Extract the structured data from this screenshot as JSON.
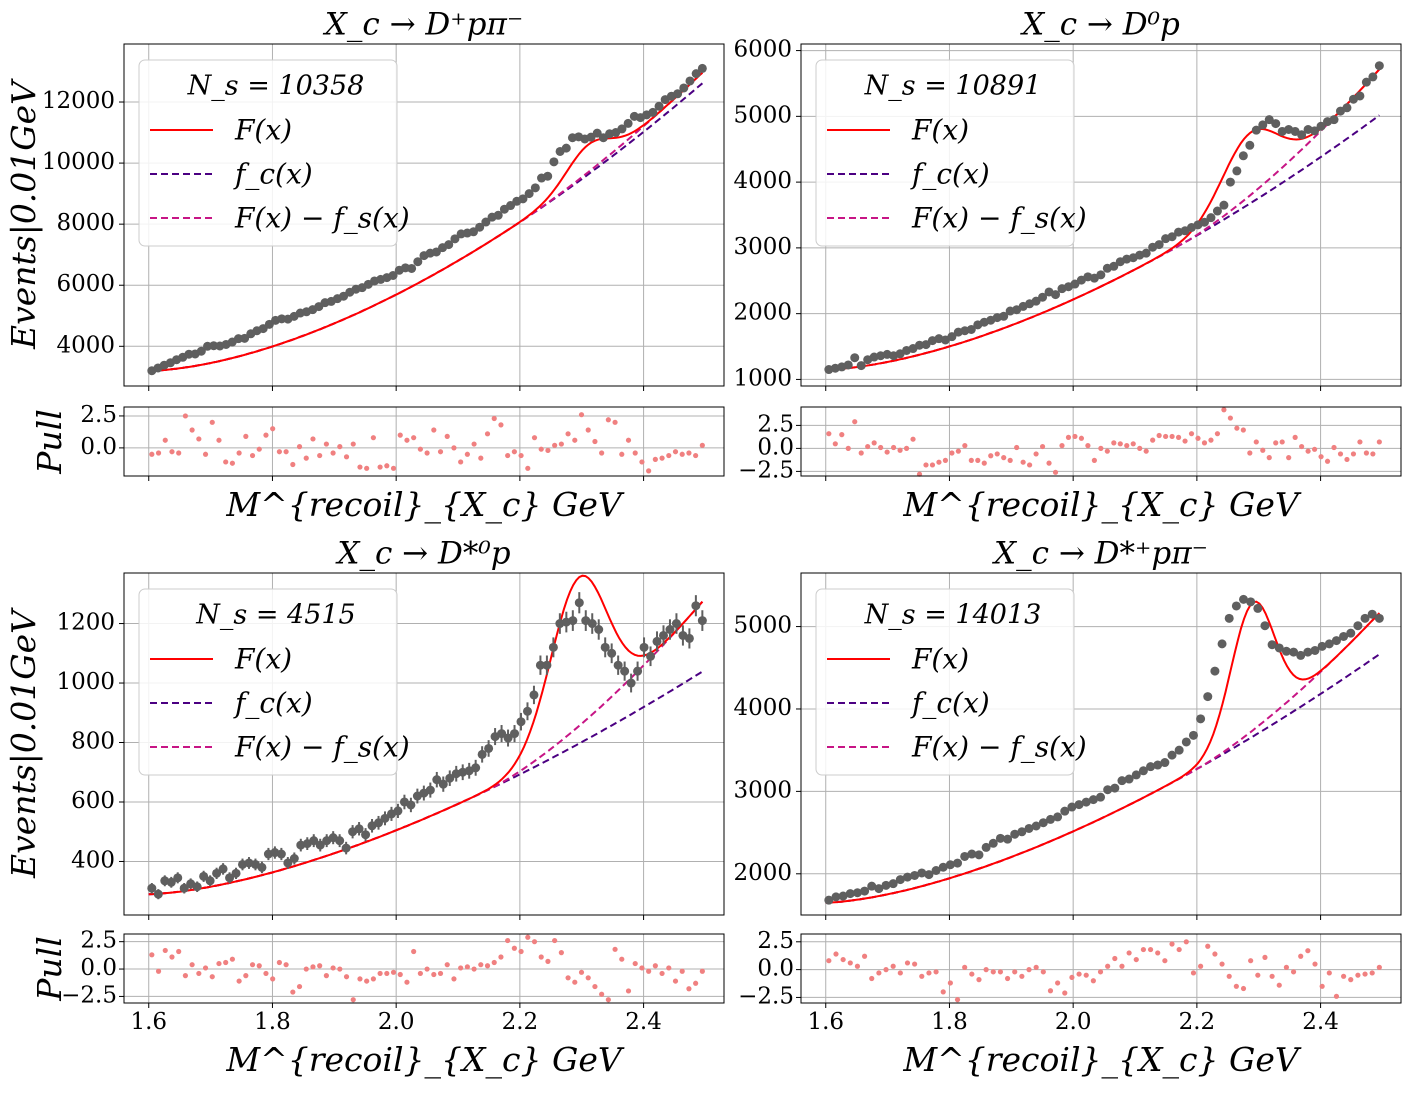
{
  "figure": {
    "background": "#ffffff"
  },
  "legend_entries": [
    "F(x)",
    "f_c(x)",
    "F(x) − f_s(x)"
  ],
  "colors": {
    "total_fit": "#ff0000",
    "combinatorial": "#4b0082",
    "fit_minus_signal": "#c71585",
    "data_points": "#5f5f5f",
    "pull_points": "#f08080",
    "grid": "#b0b0b0"
  },
  "chart_data": [
    {
      "type": "scatter",
      "title": "X_c → D⁺pπ⁻",
      "ylabel": "Events|0.01GeV",
      "xlabel": "M^{recoil}_{X_c} GeV",
      "pull_label": "Pull",
      "legend_title": "N_s = 10358",
      "legend_position": "upper-left",
      "show_error_bars": false,
      "xlim": [
        1.56,
        2.53
      ],
      "ylim": [
        2700,
        13900
      ],
      "yticks": [
        4000,
        6000,
        8000,
        10000,
        12000
      ],
      "xticks": [
        1.6,
        1.8,
        2.0,
        2.2,
        2.4
      ],
      "x_tick_labels_shown": false,
      "grid": true,
      "model": {
        "x_range": [
          1.6,
          2.495
        ],
        "background": {
          "a": 3200,
          "b": 12700,
          "p": 1.65
        },
        "fit_minus_signal": {
          "a": 3200,
          "b": 12700,
          "p": 1.65,
          "c": 350,
          "x0": 2.2,
          "d": 3.5
        },
        "signal_peaks": [
          {
            "amp": 900,
            "mu": 2.31,
            "sigma": 0.035
          }
        ]
      },
      "data_y": [
        3200,
        3290,
        3380,
        3460,
        3560,
        3640,
        3740,
        3750,
        3840,
        4000,
        4020,
        4010,
        4060,
        4140,
        4250,
        4260,
        4410,
        4510,
        4580,
        4720,
        4850,
        4900,
        4890,
        4980,
        5090,
        5130,
        5200,
        5300,
        5430,
        5470,
        5560,
        5640,
        5770,
        5870,
        5920,
        6030,
        6140,
        6190,
        6250,
        6320,
        6490,
        6570,
        6550,
        6770,
        6970,
        7050,
        7090,
        7230,
        7330,
        7520,
        7680,
        7710,
        7750,
        7900,
        8070,
        8230,
        8290,
        8490,
        8610,
        8750,
        8830,
        9000,
        9190,
        9510,
        9570,
        10040,
        10380,
        10490,
        10830,
        10860,
        10790,
        10850,
        10980,
        10830,
        10960,
        11000,
        11120,
        11300,
        11530,
        11490,
        11580,
        11660,
        11860,
        12080,
        12190,
        12270,
        12460,
        12690,
        12930,
        13100
      ],
      "pull_ylim": [
        -2.2,
        3.2
      ],
      "pull_yticks": [
        0.0,
        2.5
      ],
      "pull_values": [
        -0.5,
        -0.4,
        0.6,
        -0.3,
        -0.4,
        2.5,
        1.4,
        0.7,
        -0.5,
        2.0,
        0.6,
        -1.1,
        -1.2,
        -0.4,
        0.9,
        -0.6,
        -0.1,
        1.0,
        1.5,
        -0.3,
        -0.3,
        -1.3,
        0.1,
        -0.8,
        0.7,
        -0.6,
        0.3,
        -0.4,
        0.1,
        -0.7,
        0.3,
        -1.5,
        -1.6,
        0.8,
        -1.5,
        -1.4,
        -1.6,
        1.0,
        0.6,
        0.8,
        -0.1,
        -0.4,
        1.4,
        -0.3,
        0.9,
        0.0,
        -1.1,
        -0.5,
        0.3,
        -0.8,
        1.1,
        2.3,
        1.8,
        -0.6,
        -0.3,
        -0.6,
        -1.6,
        0.8,
        -0.1,
        -0.2,
        0.2,
        0.3,
        1.1,
        0.6,
        2.6,
        1.4,
        0.5,
        -0.4,
        2.2,
        2.0,
        -0.5,
        0.6,
        -0.4,
        -1.1,
        -1.8,
        -0.9,
        -0.8,
        -0.6,
        -0.3,
        -0.5,
        -0.4,
        -0.6,
        0.2
      ]
    },
    {
      "type": "scatter",
      "title": "X_c → D⁰p",
      "ylabel": "",
      "xlabel": "M^{recoil}_{X_c} GeV",
      "pull_label": "",
      "legend_title": "N_s = 10891",
      "legend_position": "upper-left",
      "show_error_bars": false,
      "xlim": [
        1.56,
        2.53
      ],
      "ylim": [
        900,
        6100
      ],
      "yticks": [
        1000,
        2000,
        3000,
        4000,
        5000,
        6000
      ],
      "xticks": [
        1.6,
        1.8,
        2.0,
        2.2,
        2.4
      ],
      "x_tick_labels_shown": false,
      "grid": true,
      "model": {
        "x_range": [
          1.6,
          2.495
        ],
        "background": {
          "a": 1150,
          "b": 5050,
          "p": 1.6
        },
        "fit_minus_signal": {
          "a": 1150,
          "b": 5050,
          "p": 1.6,
          "c": 700,
          "x0": 2.18,
          "d": 3.3
        },
        "signal_peaks": [
          {
            "amp": 950,
            "mu": 2.285,
            "sigma": 0.045
          }
        ]
      },
      "data_y": [
        1150,
        1170,
        1190,
        1220,
        1330,
        1210,
        1300,
        1340,
        1360,
        1380,
        1360,
        1390,
        1440,
        1470,
        1520,
        1530,
        1590,
        1620,
        1600,
        1650,
        1720,
        1740,
        1760,
        1830,
        1870,
        1900,
        1940,
        1960,
        2040,
        2060,
        2110,
        2150,
        2190,
        2250,
        2330,
        2290,
        2380,
        2410,
        2450,
        2510,
        2560,
        2540,
        2590,
        2690,
        2720,
        2790,
        2830,
        2850,
        2890,
        2920,
        3010,
        3050,
        3140,
        3170,
        3240,
        3260,
        3310,
        3350,
        3390,
        3460,
        3560,
        3650,
        4000,
        4170,
        4400,
        4560,
        4790,
        4870,
        4950,
        4890,
        4770,
        4800,
        4770,
        4720,
        4800,
        4780,
        4850,
        4920,
        4950,
        5080,
        5130,
        5260,
        5310,
        5520,
        5600,
        5770
      ],
      "pull_ylim": [
        -3.0,
        4.5
      ],
      "pull_yticks": [
        -2.5,
        0.0,
        2.5
      ],
      "pull_values": [
        1.6,
        0.5,
        1.5,
        0.0,
        2.9,
        -0.5,
        0.2,
        0.6,
        0.1,
        -0.4,
        0.1,
        -0.2,
        0.0,
        1.0,
        -2.8,
        -1.8,
        -1.8,
        -1.5,
        -1.3,
        -0.5,
        -0.3,
        0.3,
        -1.3,
        -1.3,
        -1.6,
        -0.8,
        -0.6,
        -1.0,
        -1.3,
        0.1,
        -1.5,
        -1.8,
        -0.6,
        0.2,
        -1.6,
        -2.6,
        0.3,
        1.2,
        1.3,
        1.1,
        0.3,
        -1.3,
        0.0,
        -0.3,
        0.6,
        0.5,
        0.3,
        0.5,
        0.0,
        -0.3,
        0.9,
        1.4,
        1.3,
        1.3,
        1.2,
        0.8,
        1.6,
        1.1,
        0.6,
        0.9,
        1.6,
        4.2,
        3.3,
        2.2,
        2.0,
        -0.5,
        0.7,
        -0.2,
        -1.0,
        0.6,
        0.7,
        -1.0,
        1.2,
        0.2,
        -0.3,
        -0.1,
        -0.9,
        -1.4,
        0.1,
        -0.6,
        -1.2,
        -0.6,
        0.7,
        -0.5,
        -0.6,
        0.7
      ]
    },
    {
      "type": "scatter",
      "title": "X_c → D*⁰p",
      "ylabel": "Events|0.01GeV",
      "xlabel": "M^{recoil}_{X_c} GeV",
      "pull_label": "Pull",
      "legend_title": "N_s = 4515",
      "legend_position": "upper-left",
      "show_error_bars": true,
      "xlim": [
        1.56,
        2.53
      ],
      "ylim": [
        220,
        1370
      ],
      "yticks": [
        400,
        600,
        800,
        1000,
        1200
      ],
      "xticks": [
        1.6,
        1.8,
        2.0,
        2.2,
        2.4
      ],
      "x_tick_labels_shown": true,
      "grid": true,
      "model": {
        "x_range": [
          1.6,
          2.495
        ],
        "background": {
          "a": 290,
          "b": 1045,
          "p": 1.55
        },
        "fit_minus_signal": {
          "a": 290,
          "b": 1045,
          "p": 1.55,
          "c": 235,
          "x0": 2.15,
          "d": 3.2
        },
        "signal_peaks": [
          {
            "amp": 500,
            "mu": 2.295,
            "sigma": 0.045
          }
        ]
      },
      "data_y": [
        310,
        290,
        335,
        330,
        345,
        310,
        325,
        315,
        350,
        335,
        360,
        375,
        345,
        360,
        390,
        395,
        390,
        380,
        425,
        430,
        425,
        395,
        410,
        455,
        460,
        470,
        455,
        470,
        480,
        470,
        445,
        500,
        510,
        490,
        520,
        530,
        545,
        560,
        570,
        600,
        590,
        620,
        630,
        640,
        675,
        660,
        680,
        695,
        700,
        705,
        715,
        760,
        780,
        820,
        830,
        815,
        830,
        870,
        905,
        960,
        1060,
        1060,
        1120,
        1200,
        1205,
        1210,
        1270,
        1210,
        1200,
        1180,
        1120,
        1100,
        1060,
        1040,
        1000,
        1040,
        1120,
        1090,
        1140,
        1160,
        1180,
        1200,
        1160,
        1150,
        1260,
        1210
      ],
      "pull_ylim": [
        -3.1,
        3.2
      ],
      "pull_yticks": [
        -2.5,
        0.0,
        2.5
      ],
      "pull_values": [
        1.3,
        -0.2,
        1.7,
        1.1,
        1.6,
        -0.6,
        0.4,
        -0.4,
        0.1,
        -0.7,
        0.5,
        0.6,
        0.9,
        -1.1,
        -0.6,
        0.4,
        0.3,
        -0.4,
        -0.9,
        0.6,
        0.4,
        -2.1,
        -1.6,
        0.0,
        0.2,
        0.3,
        -0.6,
        0.1,
        0.0,
        -0.7,
        -2.8,
        -0.9,
        -1.1,
        -0.9,
        -0.4,
        -0.4,
        -0.3,
        -0.5,
        -1.2,
        1.6,
        -0.4,
        0.0,
        -0.5,
        -0.4,
        0.4,
        -0.9,
        0.1,
        0.2,
        0.0,
        0.4,
        0.3,
        0.6,
        1.1,
        2.6,
        1.9,
        1.6,
        2.9,
        2.5,
        1.1,
        0.7,
        2.6,
        1.5,
        -0.8,
        -1.2,
        -0.3,
        -0.8,
        -1.6,
        -2.3,
        -2.8,
        1.8,
        0.9,
        -2.0,
        0.5,
        0.1,
        -0.2,
        0.3,
        -0.4,
        0.1,
        -1.1,
        -0.2,
        -1.8,
        -1.3,
        -0.2
      ]
    },
    {
      "type": "scatter",
      "title": "X_c → D*⁺pπ⁻",
      "ylabel": "",
      "xlabel": "M^{recoil}_{X_c} GeV",
      "pull_label": "",
      "legend_title": "N_s = 14013",
      "legend_position": "upper-left",
      "show_error_bars": false,
      "xlim": [
        1.56,
        2.53
      ],
      "ylim": [
        1500,
        5650
      ],
      "yticks": [
        2000,
        3000,
        4000,
        5000
      ],
      "xticks": [
        1.6,
        1.8,
        2.0,
        2.2,
        2.4
      ],
      "x_tick_labels_shown": true,
      "grid": true,
      "model": {
        "x_range": [
          1.6,
          2.495
        ],
        "background": {
          "a": 1650,
          "b": 4690,
          "p": 1.55
        },
        "fit_minus_signal": {
          "a": 1650,
          "b": 4690,
          "p": 1.55,
          "c": 500,
          "x0": 2.2,
          "d": 4.0
        },
        "signal_peaks": [
          {
            "amp": 1550,
            "mu": 2.29,
            "sigma": 0.035
          }
        ]
      },
      "data_y": [
        1680,
        1720,
        1730,
        1760,
        1770,
        1790,
        1850,
        1820,
        1860,
        1880,
        1930,
        1960,
        1980,
        2010,
        1990,
        2040,
        2080,
        2110,
        2130,
        2210,
        2240,
        2230,
        2320,
        2370,
        2430,
        2420,
        2480,
        2510,
        2550,
        2580,
        2620,
        2660,
        2690,
        2760,
        2810,
        2840,
        2870,
        2900,
        2930,
        3020,
        3040,
        3130,
        3150,
        3200,
        3250,
        3300,
        3320,
        3350,
        3440,
        3500,
        3600,
        3680,
        3880,
        4150,
        4460,
        4790,
        5100,
        5250,
        5330,
        5300,
        5220,
        5010,
        4780,
        4740,
        4700,
        4690,
        4650,
        4690,
        4710,
        4760,
        4790,
        4830,
        4880,
        4920,
        5010,
        5100,
        5150,
        5100
      ],
      "pull_ylim": [
        -3.0,
        3.2
      ],
      "pull_yticks": [
        -2.5,
        0.0,
        2.5
      ],
      "pull_values": [
        0.8,
        1.4,
        0.9,
        0.6,
        0.3,
        1.2,
        -0.8,
        -0.3,
        0.0,
        0.3,
        -0.3,
        0.6,
        0.5,
        -0.6,
        -0.3,
        -0.2,
        -2.0,
        -1.2,
        -2.7,
        0.2,
        -0.4,
        -0.9,
        0.0,
        -0.2,
        -0.2,
        -0.8,
        -0.2,
        -0.6,
        0.0,
        0.2,
        -0.2,
        -1.9,
        -1.2,
        -2.1,
        -0.7,
        -0.4,
        -0.5,
        -1.0,
        -0.2,
        0.3,
        1.0,
        0.3,
        1.5,
        0.9,
        1.8,
        1.8,
        1.5,
        0.8,
        2.3,
        1.8,
        2.5,
        -0.3,
        0.3,
        2.1,
        1.4,
        0.5,
        -0.6,
        -1.5,
        -1.7,
        0.8,
        -0.5,
        1.1,
        -0.6,
        -1.4,
        0.2,
        -0.2,
        1.2,
        1.7,
        0.5,
        -1.5,
        -0.3,
        -2.4,
        -0.6,
        -0.9,
        -0.5,
        -0.4,
        -0.3,
        0.2
      ]
    }
  ]
}
